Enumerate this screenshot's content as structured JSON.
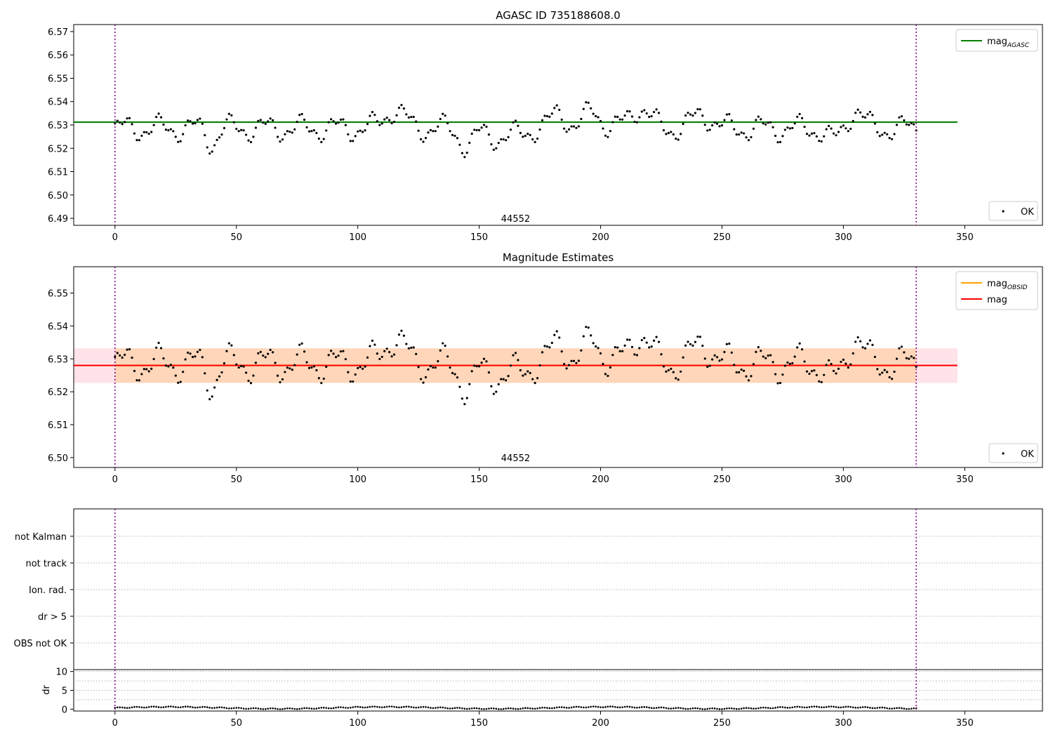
{
  "chart_data": [
    {
      "type": "scatter",
      "title": "AGASC ID 735188608.0",
      "xlim": [
        -17,
        382
      ],
      "ylim": [
        6.487,
        6.573
      ],
      "xticks": [
        0,
        50,
        100,
        150,
        200,
        250,
        300,
        350
      ],
      "yticks": [
        6.49,
        6.5,
        6.51,
        6.52,
        6.53,
        6.54,
        6.55,
        6.56,
        6.57
      ],
      "vlines": [
        0,
        330
      ],
      "obsid_label": {
        "text": "44552",
        "x": 165,
        "y": 6.49
      },
      "hlines": [
        {
          "name_main": "mag",
          "name_sub": "AGASC",
          "y": 6.5312,
          "x_range": [
            -17,
            347
          ],
          "color": "#008000"
        }
      ],
      "series": [
        {
          "name": "OK",
          "color": "#000000"
        }
      ],
      "legend": {
        "lines": "top-right",
        "points": "bottom-right"
      }
    },
    {
      "type": "scatter",
      "title": "Magnitude Estimates",
      "xlim": [
        -17,
        382
      ],
      "ylim": [
        6.497,
        6.558
      ],
      "xticks": [
        0,
        50,
        100,
        150,
        200,
        250,
        300,
        350
      ],
      "yticks": [
        6.5,
        6.51,
        6.52,
        6.53,
        6.54,
        6.55
      ],
      "vlines": [
        0,
        330
      ],
      "obsid_label": {
        "text": "44552",
        "x": 165,
        "y": 6.5
      },
      "bands": [
        {
          "y0": 6.5227,
          "y1": 6.5332,
          "x_range": [
            -17,
            347
          ],
          "color": "#ffc0cb",
          "opacity": 0.45
        },
        {
          "y0": 6.5227,
          "y1": 6.5332,
          "x_range": [
            0,
            330
          ],
          "color": "#ffa500",
          "opacity": 0.2
        }
      ],
      "hlines": [
        {
          "name_main": "mag",
          "name_sub": "OBSID",
          "y": 6.528,
          "x_range": [
            0,
            330
          ],
          "color": "#ffa500"
        },
        {
          "name_main": "mag",
          "name_sub": "",
          "y": 6.528,
          "x_range": [
            -17,
            347
          ],
          "color": "#ff0000"
        }
      ],
      "series": [
        {
          "name": "OK",
          "color": "#000000"
        }
      ],
      "legend": {
        "lines": "top-right",
        "points": "bottom-right"
      }
    },
    {
      "type": "scatter",
      "title": "",
      "xlim": [
        -17,
        382
      ],
      "categories": [
        "not Kalman",
        "not track",
        "Ion. rad.",
        "dr > 5",
        "OBS not OK"
      ],
      "grid": "horizontal dotted",
      "vlines": [
        0,
        330
      ]
    },
    {
      "type": "scatter",
      "title": "",
      "ylabel": "dr",
      "xlim": [
        -17,
        382
      ],
      "ylim": [
        -0.5,
        10.5
      ],
      "xticks": [
        0,
        50,
        100,
        150,
        200,
        250,
        300,
        350
      ],
      "yticks": [
        0,
        5,
        10
      ],
      "grid": "horizontal dotted",
      "vlines": [
        0,
        330
      ]
    }
  ]
}
